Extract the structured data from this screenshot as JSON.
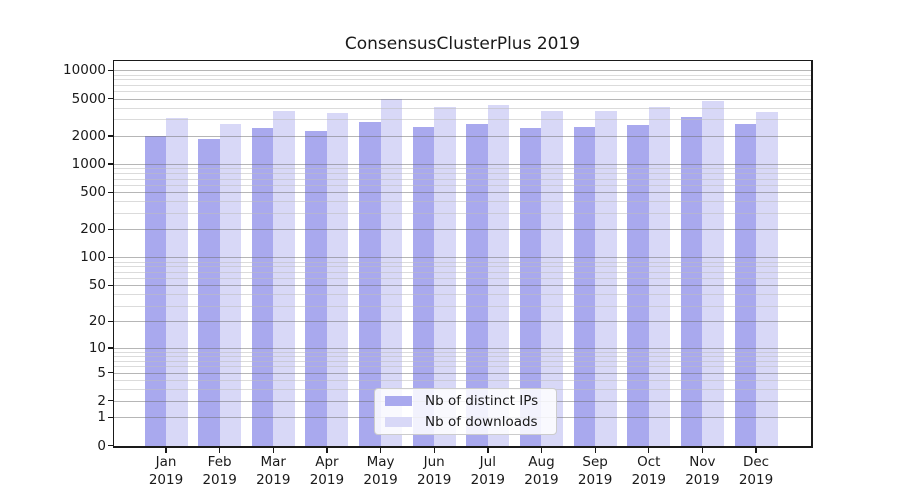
{
  "chart_data": {
    "type": "bar",
    "title": "ConsensusClusterPlus 2019",
    "categories": [
      "Jan",
      "Feb",
      "Mar",
      "Apr",
      "May",
      "Jun",
      "Jul",
      "Aug",
      "Sep",
      "Oct",
      "Nov",
      "Dec"
    ],
    "year": "2019",
    "series": [
      {
        "name": "Nb of distinct IPs",
        "color": "#a9a9ee",
        "values": [
          1970,
          1860,
          2430,
          2240,
          2800,
          2465,
          2700,
          2410,
          2480,
          2630,
          3200,
          2660
        ]
      },
      {
        "name": "Nb of downloads",
        "color": "#d8d8f7",
        "values": [
          3080,
          2660,
          3650,
          3490,
          4900,
          4080,
          4250,
          3680,
          3650,
          4050,
          4720,
          3600
        ]
      }
    ],
    "y_scale": "log10(1+x)",
    "y_ticks": [
      0,
      1,
      2,
      5,
      10,
      20,
      50,
      100,
      200,
      500,
      1000,
      2000,
      5000,
      10000
    ],
    "y_minor_ticks": [
      3,
      4,
      6,
      7,
      8,
      9,
      30,
      40,
      60,
      70,
      80,
      90,
      300,
      400,
      600,
      700,
      800,
      900,
      3000,
      4000,
      6000,
      7000,
      8000,
      9000
    ],
    "ylim": [
      0,
      12500
    ],
    "xlabel": "",
    "ylabel": "",
    "grid": {
      "major_color": "#b6b6b6",
      "minor_color": "#dcdcdc",
      "grid_on_top": true
    },
    "legend": {
      "position": "inside-bottom-center"
    }
  }
}
